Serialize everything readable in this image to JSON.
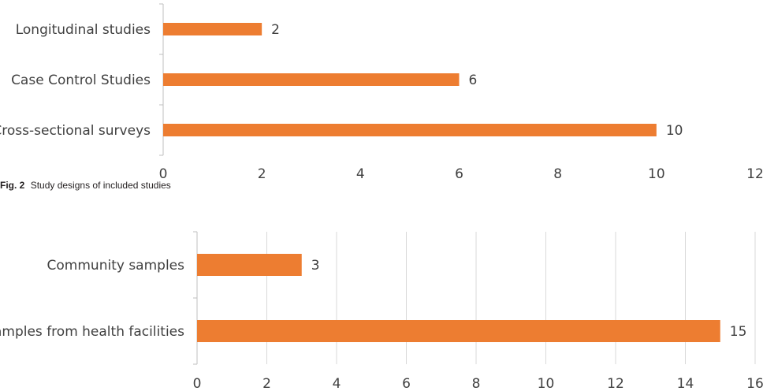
{
  "figure_caption": {
    "label": "Fig. 2",
    "text": "Study designs of included studies"
  },
  "colors": {
    "bar": "#ED7D31",
    "grid": "#D9D9D9",
    "axis": "#BFBFBF",
    "text": "#404040"
  },
  "chart_data": [
    {
      "type": "bar",
      "orientation": "horizontal",
      "categories": [
        "Longitudinal studies",
        "Case Control Studies",
        "Cross-sectional surveys"
      ],
      "values": [
        2,
        6,
        10
      ],
      "xlim": [
        0,
        12
      ],
      "xticks": [
        0,
        2,
        4,
        6,
        8,
        10,
        12
      ],
      "grid": false,
      "data_labels": true
    },
    {
      "type": "bar",
      "orientation": "horizontal",
      "categories": [
        "Community samples",
        "Samples from health facilities"
      ],
      "values": [
        3,
        15
      ],
      "xlim": [
        0,
        16
      ],
      "xticks": [
        0,
        2,
        4,
        6,
        8,
        10,
        12,
        14,
        16
      ],
      "grid": true,
      "data_labels": true
    }
  ]
}
